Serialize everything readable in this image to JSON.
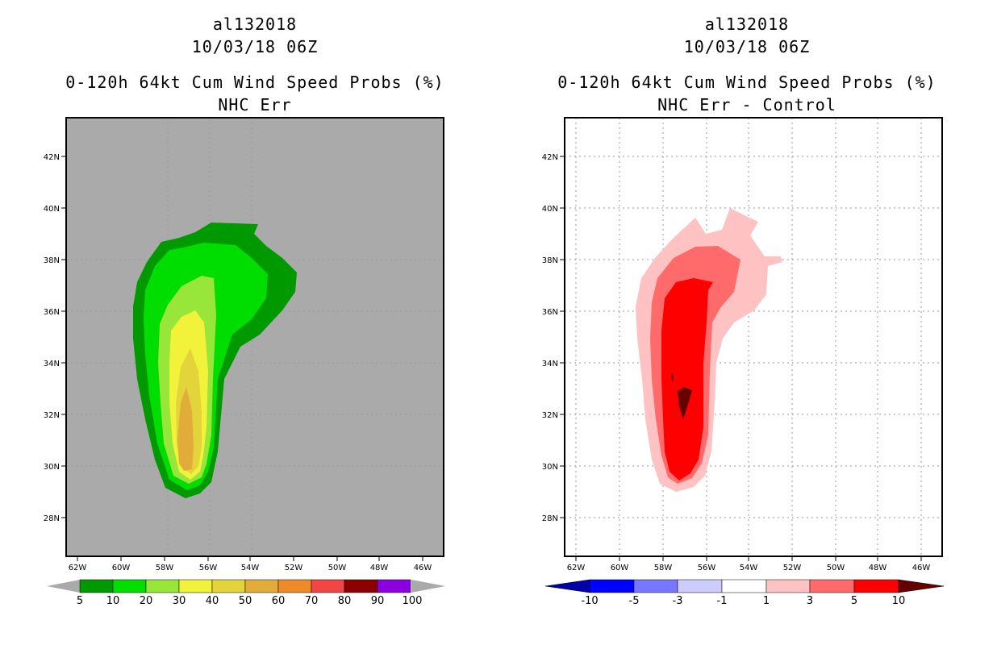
{
  "panels": [
    {
      "storm_id": "al132018",
      "datetime": "10/03/18 06Z",
      "product": "0-120h 64kt Cum Wind Speed Probs (%)",
      "subtitle": "NHC Err",
      "colorbar": {
        "labels": [
          "5",
          "10",
          "20",
          "30",
          "40",
          "50",
          "60",
          "70",
          "80",
          "90",
          "100"
        ],
        "colors": [
          "#009900",
          "#00dd00",
          "#99e63a",
          "#f2f23a",
          "#e2d43a",
          "#e2ac3a",
          "#ee8a2a",
          "#f04646",
          "#8c0000",
          "#8c00e0"
        ]
      }
    },
    {
      "storm_id": "al132018",
      "datetime": "10/03/18 06Z",
      "product": "0-120h 64kt Cum Wind Speed Probs (%)",
      "subtitle": "NHC Err - Control",
      "colorbar": {
        "labels": [
          "-10",
          "-5",
          "-3",
          "-1",
          "1",
          "3",
          "5",
          "10"
        ],
        "colors": [
          "#0000aa",
          "#0000ff",
          "#7777ff",
          "#ccccff",
          "#ffffff",
          "#ffc2c2",
          "#ff6a6a",
          "#ff0000",
          "#660000"
        ]
      }
    }
  ],
  "axes": {
    "lat_labels": [
      "42N",
      "40N",
      "38N",
      "36N",
      "34N",
      "32N",
      "30N",
      "28N"
    ],
    "lon_labels": [
      "62W",
      "60W",
      "58W",
      "56W",
      "54W",
      "52W",
      "50W",
      "48W",
      "46W"
    ]
  },
  "colors": {
    "land_bg": "#aaaaaa",
    "grid": "#999999"
  }
}
